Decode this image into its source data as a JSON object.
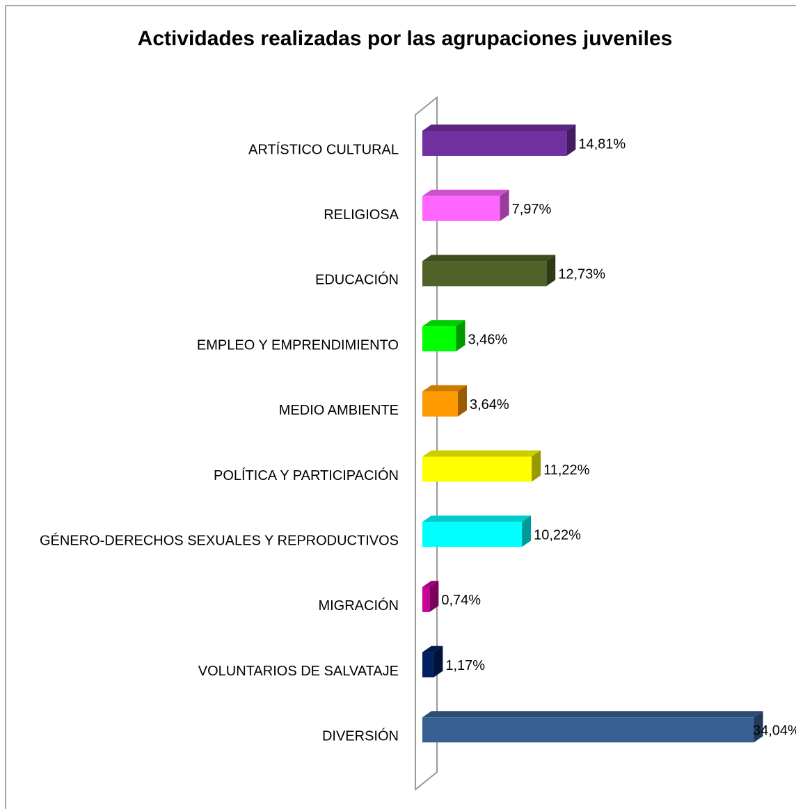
{
  "chart_data": {
    "type": "bar3d_horizontal",
    "title": "Actividades realizadas por las agrupaciones juveniles",
    "categories": [
      "ARTÍSTICO CULTURAL",
      "RELIGIOSA",
      "EDUCACIÓN",
      "EMPLEO Y EMPRENDIMIENTO",
      "MEDIO AMBIENTE",
      "POLÍTICA Y PARTICIPACIÓN",
      "GÉNERO-DERECHOS SEXUALES Y REPRODUCTIVOS",
      "MIGRACIÓN",
      "VOLUNTARIOS DE SALVATAJE",
      "DIVERSIÓN"
    ],
    "values": [
      14.81,
      7.97,
      12.73,
      3.46,
      3.64,
      11.22,
      10.22,
      0.74,
      1.17,
      34.04
    ],
    "value_labels": [
      "14,81%",
      "7,97%",
      "12,73%",
      "3,46%",
      "3,64%",
      "11,22%",
      "10,22%",
      "0,74%",
      "1,17%",
      "34,04%"
    ],
    "colors": [
      "#7030a0",
      "#ff66ff",
      "#4f6228",
      "#00ff00",
      "#ff9900",
      "#ffff00",
      "#00ffff",
      "#cc0099",
      "#002060",
      "#376092"
    ],
    "xlim": [
      0,
      36
    ]
  }
}
